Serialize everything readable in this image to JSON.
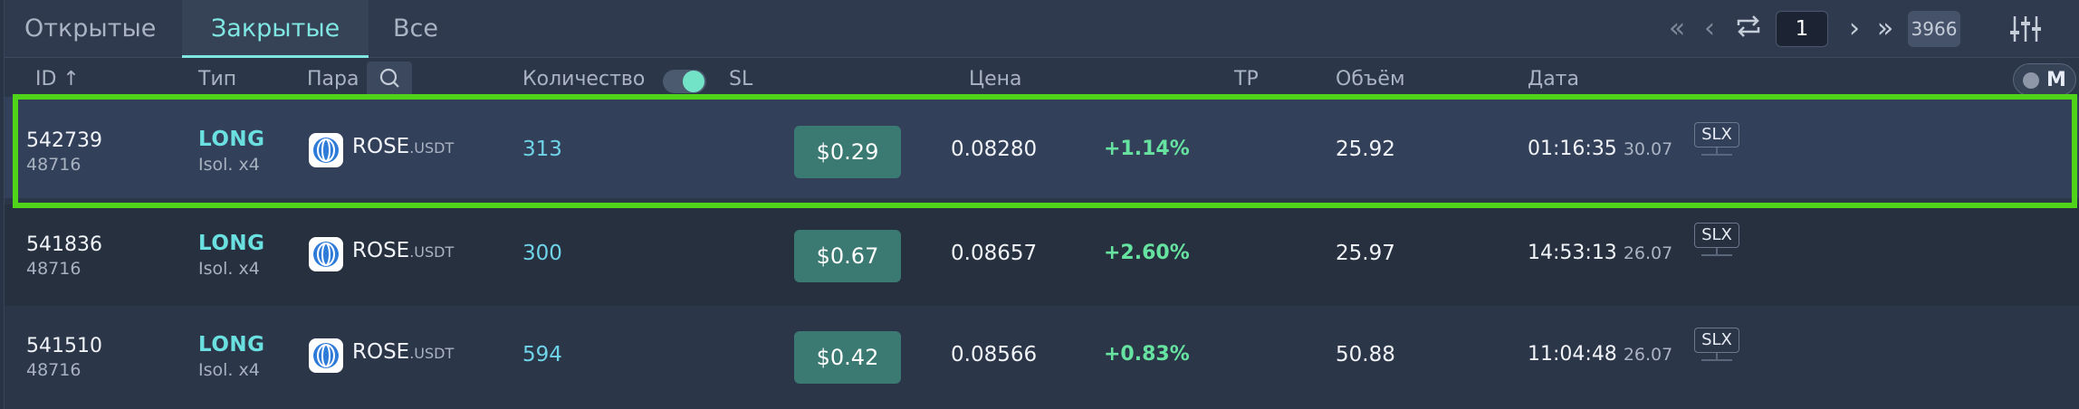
{
  "tabs": [
    {
      "label": "Открытые",
      "active": false
    },
    {
      "label": "Закрытые",
      "active": true
    },
    {
      "label": "Все",
      "active": false
    }
  ],
  "pager": {
    "first_icon": "double-chevron-left-icon",
    "prev_icon": "chevron-left-icon",
    "refresh_icon": "repeat-icon",
    "current_page": "1",
    "next_icon": "chevron-right-icon",
    "last_icon": "double-chevron-right-icon",
    "total": "3966",
    "settings_icon": "sliders-icon"
  },
  "columns": {
    "id": "ID ↑",
    "type": "Тип",
    "pair": "Пара",
    "quantity": "Количество",
    "sl": "SL",
    "price": "Цена",
    "tp": "TP",
    "volume": "Объём",
    "date": "Дата",
    "mode": "M"
  },
  "colors": {
    "accent": "#7fe6e2",
    "long": "#6be0e0",
    "positive": "#66e3a0",
    "sl_button": "#3b7a72",
    "highlight": "#4fd41a"
  },
  "rows": [
    {
      "id": "542739",
      "sub_id": "48716",
      "side": "LONG",
      "margin": "Isol. x4",
      "coin": "ROSE",
      "quote": ".USDT",
      "qty": "313",
      "sl": "$0.29",
      "price": "0.08280",
      "pct": "+1.14%",
      "volume": "25.92",
      "time": "01:16:35",
      "day": "30.07",
      "tag": "SLX"
    },
    {
      "id": "541836",
      "sub_id": "48716",
      "side": "LONG",
      "margin": "Isol. x4",
      "coin": "ROSE",
      "quote": ".USDT",
      "qty": "300",
      "sl": "$0.67",
      "price": "0.08657",
      "pct": "+2.60%",
      "volume": "25.97",
      "time": "14:53:13",
      "day": "26.07",
      "tag": "SLX"
    },
    {
      "id": "541510",
      "sub_id": "48716",
      "side": "LONG",
      "margin": "Isol. x4",
      "coin": "ROSE",
      "quote": ".USDT",
      "qty": "594",
      "sl": "$0.42",
      "price": "0.08566",
      "pct": "+0.83%",
      "volume": "50.88",
      "time": "11:04:48",
      "day": "26.07",
      "tag": "SLX"
    }
  ]
}
